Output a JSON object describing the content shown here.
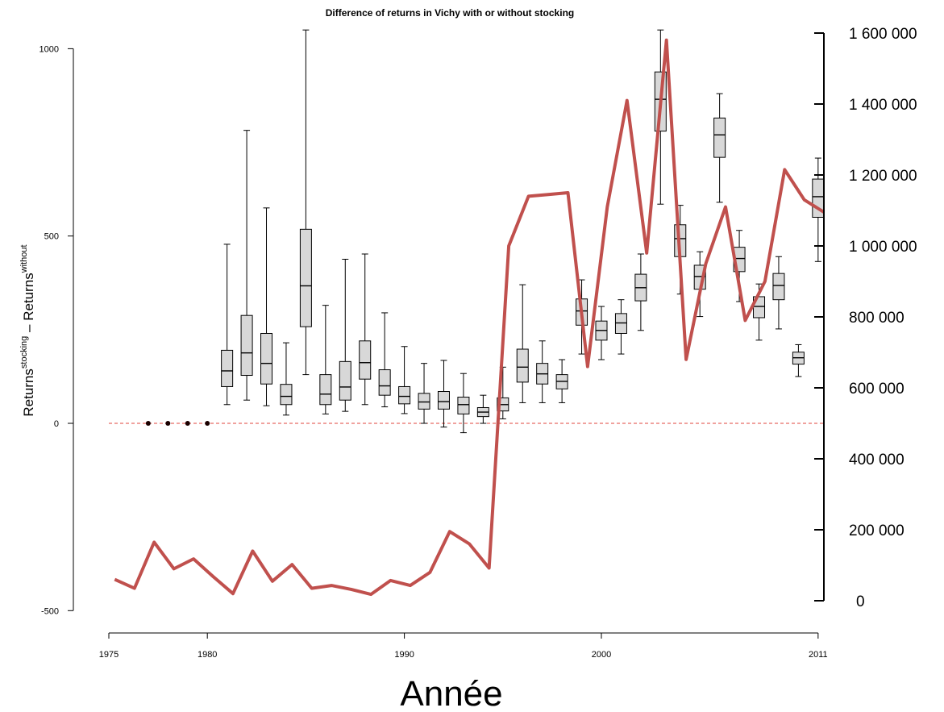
{
  "chart_data": {
    "type": "box",
    "title": "Difference of returns in Vichy with or without stocking",
    "xlabel": "Année",
    "ylabel": {
      "base": "Returns",
      "sup1": "stocking",
      "minus": " – ",
      "base2": "Returns",
      "sup2": "without"
    },
    "x_ticks": [
      1975,
      1980,
      1990,
      2000,
      2011
    ],
    "x_tick_labels": [
      "1975",
      "1980",
      "1990",
      "2000",
      "2011"
    ],
    "xlim": [
      1975,
      2011
    ],
    "left_axis": {
      "ylim": [
        -500,
        1050
      ],
      "ticks": [
        -500,
        0,
        500,
        1000
      ],
      "tick_labels": [
        "-500",
        "0",
        "500",
        "1000"
      ]
    },
    "right_axis": {
      "ylim": [
        0,
        1600000
      ],
      "ticks": [
        0,
        200000,
        400000,
        600000,
        800000,
        1000000,
        1200000,
        1400000,
        1600000
      ],
      "tick_labels": [
        "0",
        "200 000",
        "400 000",
        "600 000",
        "800 000",
        "1 000 000",
        "1 200 000",
        "1 400 000",
        "1 600 000"
      ]
    },
    "reference_line": {
      "y": 0,
      "style": "dashed",
      "color": "#e0443c"
    },
    "colors": {
      "box_fill": "#d8d8d8",
      "line": "#c0504d",
      "reference": "#e0443c"
    },
    "zero_points": [
      {
        "year": 1977,
        "value": 0
      },
      {
        "year": 1978,
        "value": 0
      },
      {
        "year": 1979,
        "value": 0
      },
      {
        "year": 1980,
        "value": 0
      }
    ],
    "boxplots": [
      {
        "year": 1981,
        "min": 50,
        "q1": 98,
        "median": 140,
        "q3": 195,
        "max": 478
      },
      {
        "year": 1982,
        "min": 62,
        "q1": 128,
        "median": 188,
        "q3": 288,
        "max": 782
      },
      {
        "year": 1983,
        "min": 47,
        "q1": 105,
        "median": 160,
        "q3": 240,
        "max": 575
      },
      {
        "year": 1984,
        "min": 22,
        "q1": 50,
        "median": 72,
        "q3": 104,
        "max": 215
      },
      {
        "year": 1985,
        "min": 130,
        "q1": 258,
        "median": 367,
        "q3": 518,
        "max": 1050
      },
      {
        "year": 1986,
        "min": 25,
        "q1": 50,
        "median": 78,
        "q3": 130,
        "max": 315
      },
      {
        "year": 1987,
        "min": 32,
        "q1": 62,
        "median": 97,
        "q3": 165,
        "max": 438
      },
      {
        "year": 1988,
        "min": 50,
        "q1": 118,
        "median": 162,
        "q3": 220,
        "max": 452
      },
      {
        "year": 1989,
        "min": 44,
        "q1": 75,
        "median": 100,
        "q3": 143,
        "max": 295
      },
      {
        "year": 1990,
        "min": 26,
        "q1": 52,
        "median": 72,
        "q3": 98,
        "max": 205
      },
      {
        "year": 1991,
        "min": 0,
        "q1": 38,
        "median": 57,
        "q3": 80,
        "max": 160
      },
      {
        "year": 1992,
        "min": -10,
        "q1": 38,
        "median": 58,
        "q3": 85,
        "max": 168
      },
      {
        "year": 1993,
        "min": -25,
        "q1": 25,
        "median": 50,
        "q3": 70,
        "max": 133
      },
      {
        "year": 1994,
        "min": 0,
        "q1": 18,
        "median": 30,
        "q3": 42,
        "max": 75
      },
      {
        "year": 1995,
        "min": 12,
        "q1": 33,
        "median": 50,
        "q3": 68,
        "max": 150
      },
      {
        "year": 1996,
        "min": 55,
        "q1": 110,
        "median": 150,
        "q3": 198,
        "max": 370
      },
      {
        "year": 1997,
        "min": 55,
        "q1": 105,
        "median": 132,
        "q3": 160,
        "max": 220
      },
      {
        "year": 1998,
        "min": 55,
        "q1": 92,
        "median": 112,
        "q3": 130,
        "max": 170
      },
      {
        "year": 1999,
        "min": 185,
        "q1": 262,
        "median": 300,
        "q3": 332,
        "max": 383
      },
      {
        "year": 2000,
        "min": 170,
        "q1": 222,
        "median": 248,
        "q3": 273,
        "max": 312
      },
      {
        "year": 2001,
        "min": 185,
        "q1": 240,
        "median": 268,
        "q3": 293,
        "max": 330
      },
      {
        "year": 2002,
        "min": 248,
        "q1": 327,
        "median": 362,
        "q3": 398,
        "max": 452
      },
      {
        "year": 2003,
        "min": 585,
        "q1": 780,
        "median": 865,
        "q3": 938,
        "max": 1050
      },
      {
        "year": 2004,
        "min": 345,
        "q1": 445,
        "median": 493,
        "q3": 530,
        "max": 582
      },
      {
        "year": 2005,
        "min": 285,
        "q1": 358,
        "median": 392,
        "q3": 422,
        "max": 458
      },
      {
        "year": 2006,
        "min": 590,
        "q1": 710,
        "median": 770,
        "q3": 815,
        "max": 880
      },
      {
        "year": 2007,
        "min": 325,
        "q1": 405,
        "median": 440,
        "q3": 470,
        "max": 515
      },
      {
        "year": 2008,
        "min": 222,
        "q1": 282,
        "median": 312,
        "q3": 338,
        "max": 372
      },
      {
        "year": 2009,
        "min": 252,
        "q1": 330,
        "median": 368,
        "q3": 400,
        "max": 445
      },
      {
        "year": 2010,
        "min": 125,
        "q1": 158,
        "median": 175,
        "q3": 190,
        "max": 210
      },
      {
        "year": 2011,
        "min": 432,
        "q1": 550,
        "median": 605,
        "q3": 652,
        "max": 708
      }
    ],
    "stocking_line": {
      "axis": "right",
      "x": [
        1975.3,
        1976.3,
        1977.3,
        1978.3,
        1979.3,
        1980.3,
        1981.3,
        1982.3,
        1983.3,
        1984.3,
        1985.3,
        1986.3,
        1987.3,
        1988.3,
        1989.3,
        1990.3,
        1991.3,
        1992.3,
        1993.3,
        1994.3,
        1995.3,
        1996.3,
        1997.3,
        1998.3,
        1999.3,
        2000.3,
        2001.3,
        2002.3,
        2003.3,
        2004.3,
        2005.3,
        2006.3,
        2007.3,
        2008.3,
        2009.3,
        2010.3,
        2011.3
      ],
      "values": [
        60000,
        35000,
        165000,
        90000,
        118000,
        68000,
        20000,
        140000,
        55000,
        102000,
        35000,
        43000,
        32000,
        18000,
        57000,
        43000,
        80000,
        195000,
        160000,
        92000,
        1000000,
        1140000,
        1145000,
        1150000,
        660000,
        1110000,
        1410000,
        980000,
        1580000,
        680000,
        950000,
        1110000,
        790000,
        900000,
        1215000,
        1130000,
        1095000
      ]
    }
  }
}
